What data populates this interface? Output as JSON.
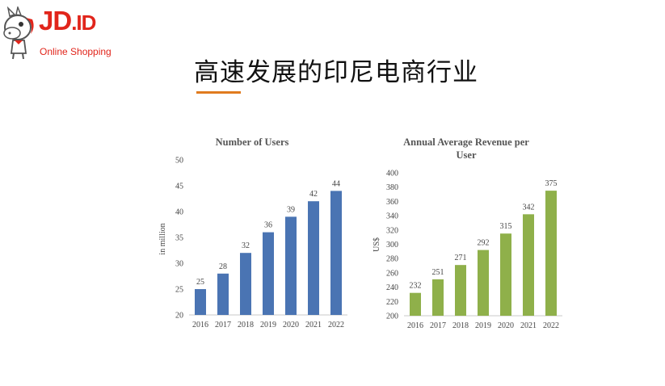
{
  "slide": {
    "title": "高速发展的印尼电商行业",
    "accent_color": "#e07b1f"
  },
  "logo": {
    "wordmark": "JD",
    "wordmark_suffix": ".ID",
    "tagline": "Online Shopping",
    "brand_color": "#e1251b",
    "icon": "horse-mascot-icon"
  },
  "chart_data": [
    {
      "type": "bar",
      "title": "Number of Users",
      "xlabel": "",
      "ylabel": "in million",
      "categories": [
        "2016",
        "2017",
        "2018",
        "2019",
        "2020",
        "2021",
        "2022"
      ],
      "values": [
        25,
        28,
        32,
        36,
        39,
        42,
        44
      ],
      "ylim": [
        20,
        50
      ],
      "yticks": [
        20,
        25,
        30,
        35,
        40,
        45,
        50
      ],
      "color": "#4a74b3",
      "data_labels": true,
      "grid": false,
      "legend": "none"
    },
    {
      "type": "bar",
      "title": "Annual Average Revenue per User",
      "xlabel": "",
      "ylabel": "US$",
      "categories": [
        "2016",
        "2017",
        "2018",
        "2019",
        "2020",
        "2021",
        "2022"
      ],
      "values": [
        232,
        251,
        271,
        292,
        315,
        342,
        375
      ],
      "ylim": [
        200,
        400
      ],
      "yticks": [
        200,
        220,
        240,
        260,
        280,
        300,
        320,
        340,
        360,
        380,
        400
      ],
      "color": "#8fb04a",
      "data_labels": true,
      "grid": false,
      "legend": "none"
    }
  ]
}
